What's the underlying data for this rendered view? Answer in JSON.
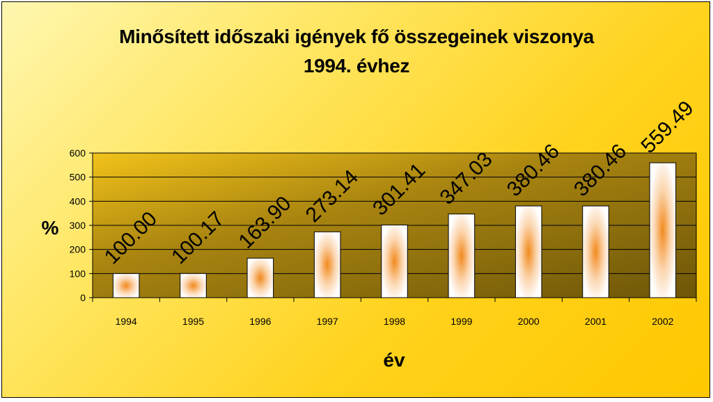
{
  "chart_data": {
    "type": "bar",
    "title_line1": "Minősített időszaki igények fő összegeinek viszonya",
    "title_line2": "1994. évhez",
    "xlabel": "év",
    "ylabel": "%",
    "ylim": [
      0,
      600
    ],
    "yticks": [
      0,
      100,
      200,
      300,
      400,
      500,
      600
    ],
    "categories": [
      "1994",
      "1995",
      "1996",
      "1997",
      "1998",
      "1999",
      "2000",
      "2001",
      "2002"
    ],
    "values": [
      100.0,
      100.17,
      163.9,
      273.14,
      301.41,
      347.03,
      380.46,
      380.46,
      559.49
    ],
    "data_labels": [
      "100.00",
      "100.17",
      "163.90",
      "273.14",
      "301.41",
      "347.03",
      "380.46",
      "380.46",
      "559.49"
    ],
    "grid": true,
    "legend": "none"
  }
}
